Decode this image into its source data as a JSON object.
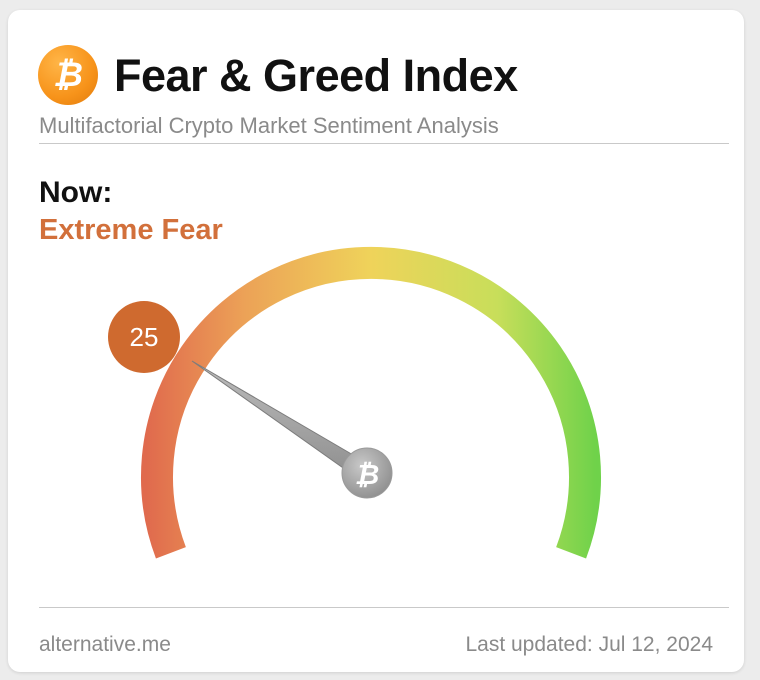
{
  "header": {
    "title": "Fear & Greed Index",
    "subtitle": "Multifactorial Crypto Market Sentiment Analysis",
    "logo_icon": "bitcoin-icon"
  },
  "current": {
    "label": "Now:",
    "classification": "Extreme Fear",
    "value": "25",
    "value_min": 0,
    "value_max": 100
  },
  "footer": {
    "source": "alternative.me",
    "last_updated": "Last updated: Jul 12, 2024"
  },
  "colors": {
    "accent": "#d2703b",
    "bubble": "#cf6a2f",
    "bitcoin_orange": "#f7931a",
    "gauge_low": "#e06a4d",
    "gauge_mid": "#efd35a",
    "gauge_high": "#6fd24a"
  }
}
